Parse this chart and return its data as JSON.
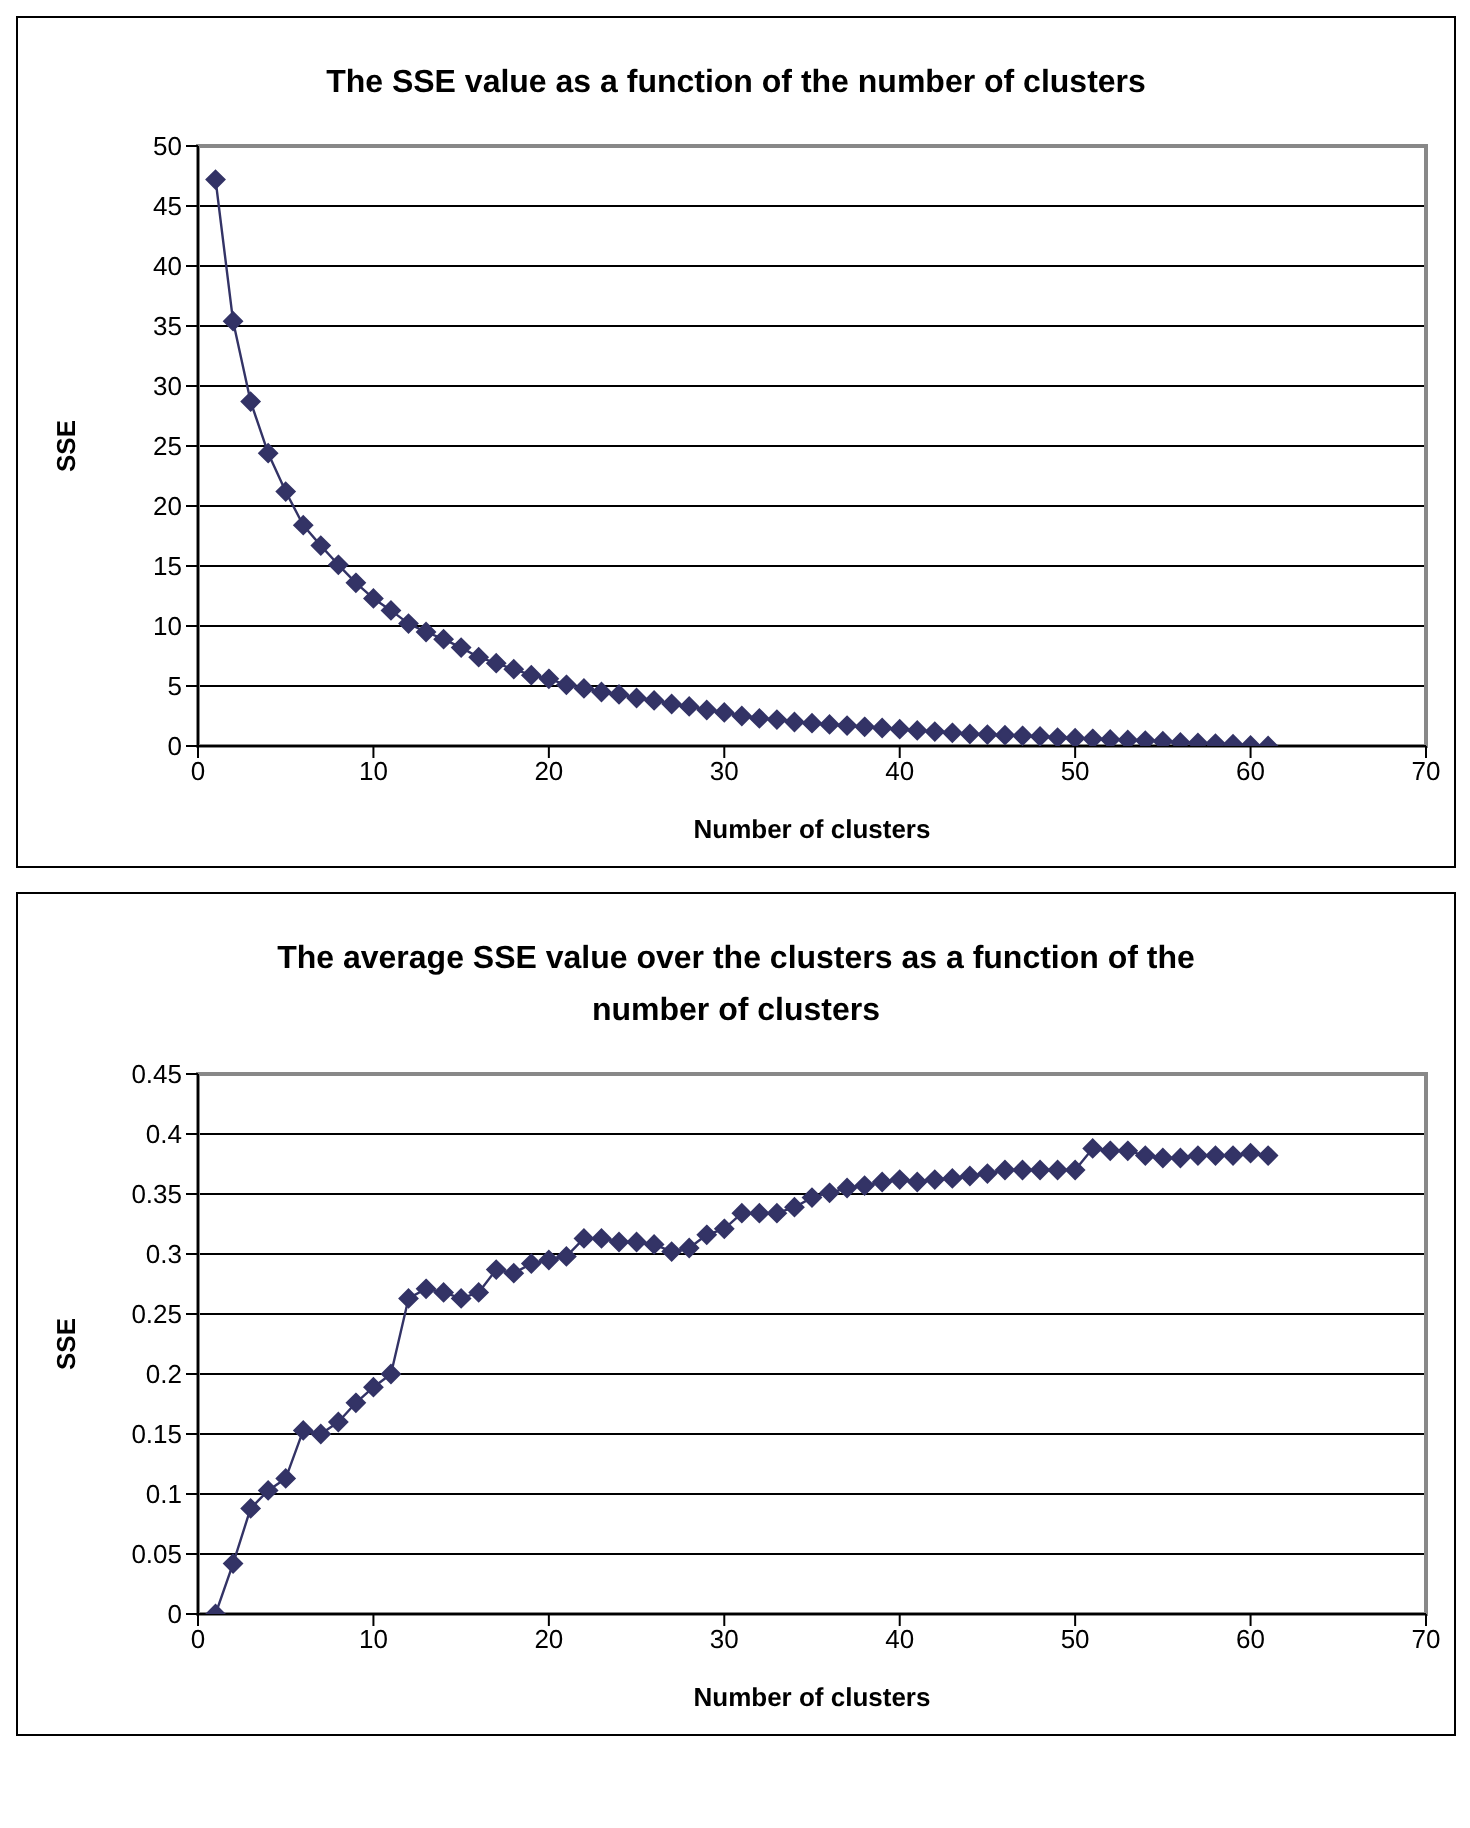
{
  "chart_data": [
    {
      "type": "line",
      "title": "The SSE value as a function of the number of clusters",
      "xlabel": "Number of clusters",
      "ylabel": "SSE",
      "x": [
        1,
        2,
        3,
        4,
        5,
        6,
        7,
        8,
        9,
        10,
        11,
        12,
        13,
        14,
        15,
        16,
        17,
        18,
        19,
        20,
        21,
        22,
        23,
        24,
        25,
        26,
        27,
        28,
        29,
        30,
        31,
        32,
        33,
        34,
        35,
        36,
        37,
        38,
        39,
        40,
        41,
        42,
        43,
        44,
        45,
        46,
        47,
        48,
        49,
        50,
        51,
        52,
        53,
        54,
        55,
        56,
        57,
        58,
        59,
        60,
        61
      ],
      "series": [
        {
          "color": "#333366",
          "values": [
            47.2,
            35.4,
            28.7,
            24.4,
            21.2,
            18.4,
            16.7,
            15.1,
            13.6,
            12.3,
            11.3,
            10.2,
            9.5,
            8.9,
            8.2,
            7.4,
            6.9,
            6.4,
            5.9,
            5.6,
            5.1,
            4.8,
            4.5,
            4.3,
            4.0,
            3.8,
            3.5,
            3.3,
            3.0,
            2.8,
            2.5,
            2.3,
            2.2,
            2.0,
            1.9,
            1.8,
            1.7,
            1.6,
            1.5,
            1.4,
            1.3,
            1.2,
            1.1,
            1.0,
            0.95,
            0.9,
            0.85,
            0.8,
            0.7,
            0.65,
            0.6,
            0.55,
            0.5,
            0.45,
            0.4,
            0.3,
            0.25,
            0.2,
            0.15,
            0.05,
            0
          ]
        }
      ],
      "xlim": [
        0,
        70
      ],
      "xticks": [
        0,
        10,
        20,
        30,
        40,
        50,
        60,
        70
      ],
      "ylim": [
        0,
        50
      ],
      "yticks": [
        0,
        5,
        10,
        15,
        20,
        25,
        30,
        35,
        40,
        45,
        50
      ],
      "grid": "y",
      "marker": "diamond",
      "line_style": "solid"
    },
    {
      "type": "line",
      "title": "The average SSE value over the clusters as a function of the number of clusters",
      "xlabel": "Number of clusters",
      "ylabel": "SSE",
      "x": [
        1,
        2,
        3,
        4,
        5,
        6,
        7,
        8,
        9,
        10,
        11,
        12,
        13,
        14,
        15,
        16,
        17,
        18,
        19,
        20,
        21,
        22,
        23,
        24,
        25,
        26,
        27,
        28,
        29,
        30,
        31,
        32,
        33,
        34,
        35,
        36,
        37,
        38,
        39,
        40,
        41,
        42,
        43,
        44,
        45,
        46,
        47,
        48,
        49,
        50,
        51,
        52,
        53,
        54,
        55,
        56,
        57,
        58,
        59,
        60,
        61
      ],
      "series": [
        {
          "color": "#333366",
          "values": [
            0,
            0.042,
            0.088,
            0.103,
            0.113,
            0.153,
            0.15,
            0.16,
            0.176,
            0.189,
            0.2,
            0.263,
            0.271,
            0.268,
            0.263,
            0.268,
            0.287,
            0.284,
            0.292,
            0.295,
            0.298,
            0.313,
            0.313,
            0.31,
            0.31,
            0.308,
            0.302,
            0.305,
            0.316,
            0.321,
            0.334,
            0.334,
            0.334,
            0.339,
            0.347,
            0.351,
            0.355,
            0.357,
            0.36,
            0.362,
            0.36,
            0.362,
            0.363,
            0.365,
            0.367,
            0.37,
            0.37,
            0.37,
            0.37,
            0.37,
            0.388,
            0.386,
            0.386,
            0.382,
            0.38,
            0.38,
            0.382,
            0.382,
            0.382,
            0.384,
            0.382
          ]
        }
      ],
      "xlim": [
        0,
        70
      ],
      "xticks": [
        0,
        10,
        20,
        30,
        40,
        50,
        60,
        70
      ],
      "ylim": [
        0,
        0.45
      ],
      "yticks": [
        0,
        0.05,
        0.1,
        0.15,
        0.2,
        0.25,
        0.3,
        0.35,
        0.4,
        0.45
      ],
      "grid": "y",
      "marker": "diamond",
      "line_style": "solid"
    }
  ]
}
